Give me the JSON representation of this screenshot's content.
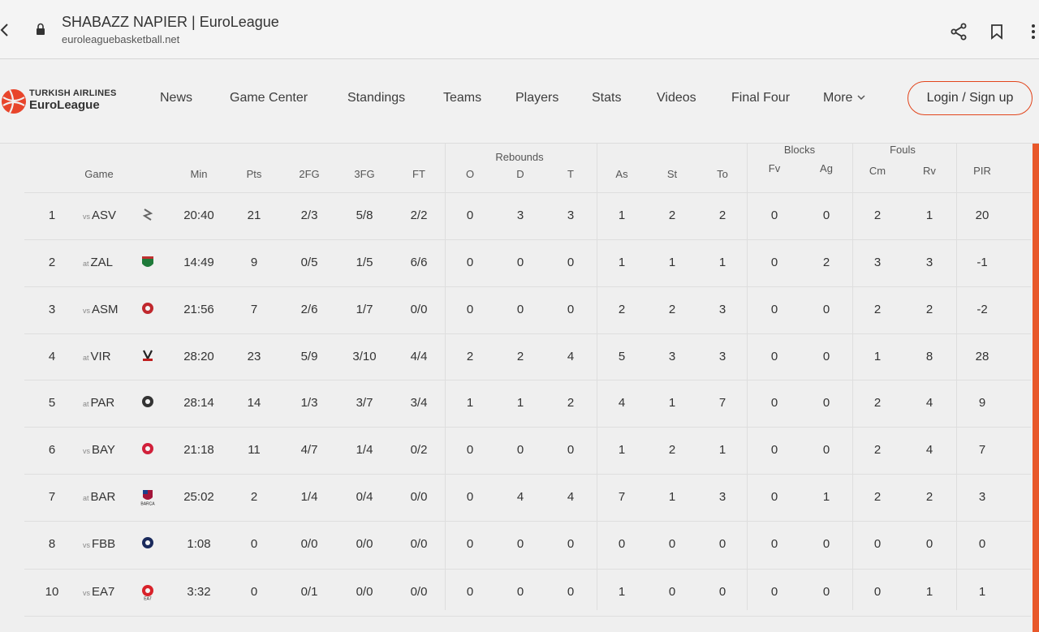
{
  "browser": {
    "title": "SHABAZZ NAPIER | EuroLeague",
    "url": "euroleaguebasketball.net"
  },
  "header": {
    "logo_line1": "TURKISH AIRLINES",
    "logo_line2": "EuroLeague",
    "nav": [
      "News",
      "Game Center",
      "Standings",
      "Teams",
      "Players",
      "Stats",
      "Videos",
      "Final Four",
      "More"
    ],
    "login": "Login / Sign up"
  },
  "table": {
    "groups": {
      "rebounds": "Rebounds",
      "blocks": "Blocks",
      "fouls": "Fouls"
    },
    "columns": [
      "Game",
      "Min",
      "Pts",
      "2FG",
      "3FG",
      "FT",
      "O",
      "D",
      "T",
      "As",
      "St",
      "To",
      "Fv",
      "Ag",
      "Cm",
      "Rv",
      "PIR"
    ],
    "rows": [
      {
        "n": "1",
        "venue": "vs",
        "opp": "ASV",
        "min": "20:40",
        "pts": "21",
        "fg2": "2/3",
        "fg3": "5/8",
        "ft": "2/2",
        "o": "0",
        "d": "3",
        "t": "3",
        "as": "1",
        "st": "2",
        "to": "2",
        "fv": "0",
        "ag": "0",
        "cm": "2",
        "rv": "1",
        "pir": "20"
      },
      {
        "n": "2",
        "venue": "at",
        "opp": "ZAL",
        "min": "14:49",
        "pts": "9",
        "fg2": "0/5",
        "fg3": "1/5",
        "ft": "6/6",
        "o": "0",
        "d": "0",
        "t": "0",
        "as": "1",
        "st": "1",
        "to": "1",
        "fv": "0",
        "ag": "2",
        "cm": "3",
        "rv": "3",
        "pir": "-1"
      },
      {
        "n": "3",
        "venue": "vs",
        "opp": "ASM",
        "min": "21:56",
        "pts": "7",
        "fg2": "2/6",
        "fg3": "1/7",
        "ft": "0/0",
        "o": "0",
        "d": "0",
        "t": "0",
        "as": "2",
        "st": "2",
        "to": "3",
        "fv": "0",
        "ag": "0",
        "cm": "2",
        "rv": "2",
        "pir": "-2"
      },
      {
        "n": "4",
        "venue": "at",
        "opp": "VIR",
        "min": "28:20",
        "pts": "23",
        "fg2": "5/9",
        "fg3": "3/10",
        "ft": "4/4",
        "o": "2",
        "d": "2",
        "t": "4",
        "as": "5",
        "st": "3",
        "to": "3",
        "fv": "0",
        "ag": "0",
        "cm": "1",
        "rv": "8",
        "pir": "28"
      },
      {
        "n": "5",
        "venue": "at",
        "opp": "PAR",
        "min": "28:14",
        "pts": "14",
        "fg2": "1/3",
        "fg3": "3/7",
        "ft": "3/4",
        "o": "1",
        "d": "1",
        "t": "2",
        "as": "4",
        "st": "1",
        "to": "7",
        "fv": "0",
        "ag": "0",
        "cm": "2",
        "rv": "4",
        "pir": "9"
      },
      {
        "n": "6",
        "venue": "vs",
        "opp": "BAY",
        "min": "21:18",
        "pts": "11",
        "fg2": "4/7",
        "fg3": "1/4",
        "ft": "0/2",
        "o": "0",
        "d": "0",
        "t": "0",
        "as": "1",
        "st": "2",
        "to": "1",
        "fv": "0",
        "ag": "0",
        "cm": "2",
        "rv": "4",
        "pir": "7"
      },
      {
        "n": "7",
        "venue": "at",
        "opp": "BAR",
        "min": "25:02",
        "pts": "2",
        "fg2": "1/4",
        "fg3": "0/4",
        "ft": "0/0",
        "o": "0",
        "d": "4",
        "t": "4",
        "as": "7",
        "st": "1",
        "to": "3",
        "fv": "0",
        "ag": "1",
        "cm": "2",
        "rv": "2",
        "pir": "3"
      },
      {
        "n": "8",
        "venue": "vs",
        "opp": "FBB",
        "min": "1:08",
        "pts": "0",
        "fg2": "0/0",
        "fg3": "0/0",
        "ft": "0/0",
        "o": "0",
        "d": "0",
        "t": "0",
        "as": "0",
        "st": "0",
        "to": "0",
        "fv": "0",
        "ag": "0",
        "cm": "0",
        "rv": "0",
        "pir": "0"
      },
      {
        "n": "10",
        "venue": "vs",
        "opp": "EA7",
        "min": "3:32",
        "pts": "0",
        "fg2": "0/1",
        "fg3": "0/0",
        "ft": "0/0",
        "o": "0",
        "d": "0",
        "t": "0",
        "as": "1",
        "st": "0",
        "to": "0",
        "fv": "0",
        "ag": "0",
        "cm": "0",
        "rv": "1",
        "pir": "1"
      }
    ],
    "logo_colors": {
      "ASV": "#666666",
      "ZAL": "#1f7a3a",
      "ASM": "#c0282d",
      "VIR": "#222222",
      "PAR": "#333333",
      "BAY": "#d1203a",
      "BAR": "#a3153a",
      "FBB": "#1a2a5c",
      "EA7": "#d8222a"
    },
    "logo_captions": {
      "BAR": "BARÇA",
      "EA7": "EA7"
    }
  }
}
